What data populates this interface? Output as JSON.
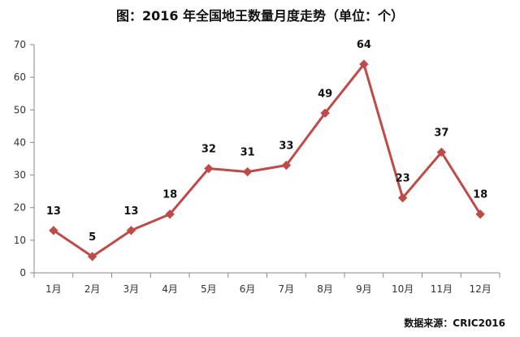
{
  "chart_data": {
    "type": "line",
    "title": "图：2016 年全国地王数量月度走势（单位：个）",
    "source": "数据来源：CRIC2016",
    "categories": [
      "1月",
      "2月",
      "3月",
      "4月",
      "5月",
      "6月",
      "7月",
      "8月",
      "9月",
      "10月",
      "11月",
      "12月"
    ],
    "series": [
      {
        "values": [
          13,
          5,
          13,
          18,
          32,
          31,
          33,
          49,
          64,
          23,
          37,
          18
        ]
      }
    ],
    "ylim": [
      0,
      70
    ],
    "yticks": [
      0,
      10,
      20,
      30,
      40,
      50,
      60,
      70
    ],
    "xlabel": "",
    "ylabel": "",
    "grid": false,
    "legend": "none",
    "data_labels": true,
    "line_color": "#BE4B48",
    "marker": "diamond"
  }
}
